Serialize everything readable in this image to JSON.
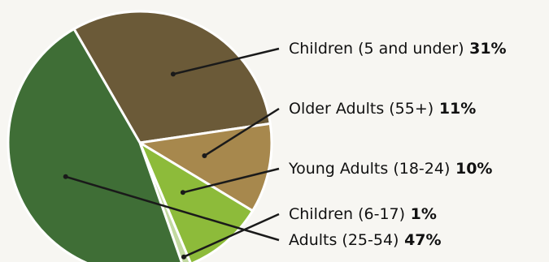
{
  "chart_data": {
    "type": "pie",
    "title": "",
    "slices": [
      {
        "label": "Children (5 and under)",
        "pct_text": "31%",
        "value": 31,
        "color": "#6b5a38"
      },
      {
        "label": "Older Adults (55+)",
        "pct_text": "11%",
        "value": 11,
        "color": "#a7884d"
      },
      {
        "label": "Young Adults (18-24)",
        "pct_text": "10%",
        "value": 10,
        "color": "#8dbb3a"
      },
      {
        "label": "Children (6-17)",
        "pct_text": "1%",
        "value": 1,
        "color": "#c2d9a0"
      },
      {
        "label": "Adults (25-54)",
        "pct_text": "47%",
        "value": 47,
        "color": "#3f6e36"
      }
    ],
    "slice_border_color": "#ffffff",
    "leader_color": "#1a1a1a",
    "legend_placement": "right, with leader lines"
  }
}
